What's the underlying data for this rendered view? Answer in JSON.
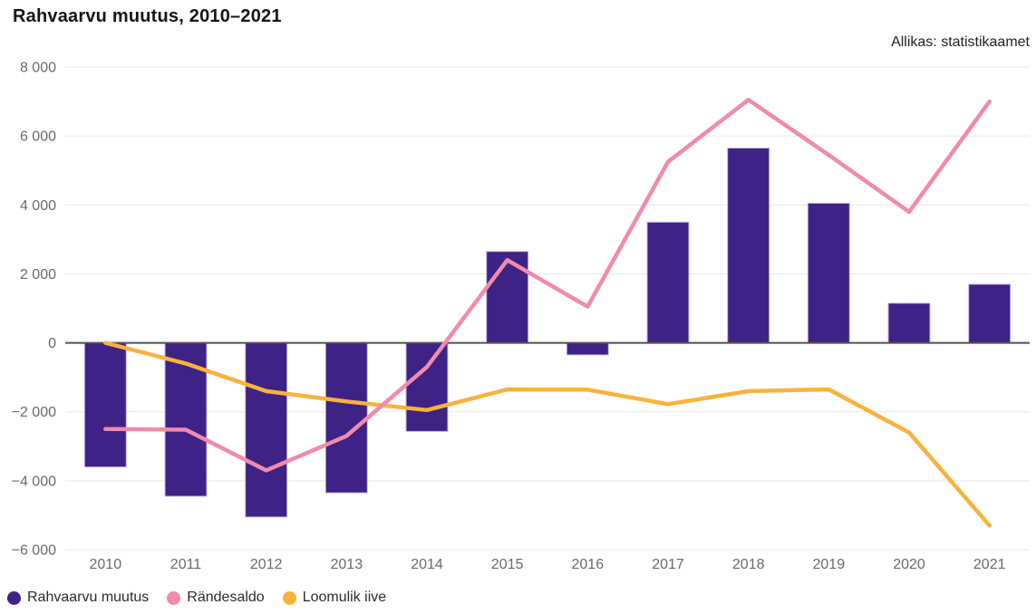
{
  "title": "Rahvaarvu muutus, 2010–2021",
  "source": "Allikas: statistikaamet",
  "legend": {
    "items": [
      {
        "label": "Rahvaarvu muutus",
        "color": "#3e2285"
      },
      {
        "label": "Rändesaldo",
        "color": "#f18bab"
      },
      {
        "label": "Loomulik iive",
        "color": "#f9b23c"
      }
    ]
  },
  "chart_data": {
    "type": "combo-bar-line",
    "title": "Rahvaarvu muutus, 2010–2021",
    "xlabel": "",
    "ylabel": "",
    "categories": [
      "2010",
      "2011",
      "2012",
      "2013",
      "2014",
      "2015",
      "2016",
      "2017",
      "2018",
      "2019",
      "2020",
      "2021"
    ],
    "series": [
      {
        "name": "Rahvaarvu muutus",
        "type": "bar",
        "color": "#3e2285",
        "values": [
          -3600,
          -4450,
          -5050,
          -4350,
          -2570,
          2650,
          -350,
          3500,
          5650,
          4050,
          1150,
          1700
        ]
      },
      {
        "name": "Rändesaldo",
        "type": "line",
        "color": "#f18bab",
        "values": [
          -2500,
          -2520,
          -3700,
          -2700,
          -700,
          2400,
          1050,
          5250,
          7050,
          5450,
          3800,
          7000
        ]
      },
      {
        "name": "Loomulik iive",
        "type": "line",
        "color": "#f9b23c",
        "values": [
          0,
          -600,
          -1400,
          -1700,
          -1950,
          -1350,
          -1360,
          -1780,
          -1400,
          -1350,
          -2600,
          -5300
        ]
      }
    ],
    "ylim": [
      -6000,
      8000
    ],
    "yticks": [
      8000,
      6000,
      4000,
      2000,
      0,
      -2000,
      -4000,
      -6000
    ],
    "ytick_labels": [
      "8 000",
      "6 000",
      "4 000",
      "2 000",
      "0",
      "−2 000",
      "−4 000",
      "−6 000"
    ],
    "grid": true,
    "legend_position": "bottom"
  },
  "colors": {
    "bar_fill": "#3e2285",
    "bar_stroke": "#c9b6e8",
    "line_randesaldo": "#f18bab",
    "line_loomulik_iive": "#f9b23c",
    "gridline": "#e7e7e7",
    "zero_line": "#515151",
    "axis_text": "#6a6a6a",
    "title_text": "#151515",
    "legend_text": "#2b2b2b"
  }
}
